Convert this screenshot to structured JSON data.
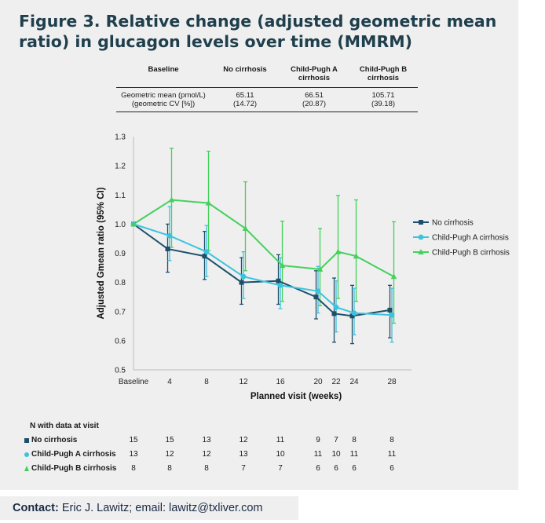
{
  "figure": {
    "title": "Figure 3. Relative change (adjusted geometric mean ratio) in glucagon levels over time (MMRM)"
  },
  "baseline_table": {
    "headers": [
      "Baseline",
      "No cirrhosis",
      "Child-Pugh A cirrhosis",
      "Child-Pugh B cirrhosis"
    ],
    "row_label": [
      "Geometric mean (pmol/L)",
      "(geometric CV [%])"
    ],
    "values": [
      [
        "65.11",
        "(14.72)"
      ],
      [
        "66.51",
        "(20.87)"
      ],
      [
        "105.71",
        "(39.18)"
      ]
    ]
  },
  "chart_data": {
    "type": "line",
    "x": [
      0,
      4,
      8,
      12,
      16,
      20,
      22,
      24,
      28
    ],
    "x_tick_labels": [
      "Baseline",
      "4",
      "8",
      "12",
      "16",
      "20",
      "22",
      "24",
      "28"
    ],
    "xlabel": "Planned visit (weeks)",
    "ylabel": "Adjusted Gmean ratio (95% CI)",
    "ylim": [
      0.5,
      1.3
    ],
    "y_ticks": [
      "0.5",
      "0.6",
      "0.7",
      "0.8",
      "0.9",
      "1.0",
      "1.1",
      "1.2",
      "1.3"
    ],
    "grid": false,
    "legend_position": "right",
    "series": [
      {
        "name": "No cirrhosis",
        "color": "#1d4f6b",
        "marker": "square",
        "values": [
          1.0,
          0.915,
          0.89,
          0.8,
          0.805,
          0.75,
          0.693,
          0.685,
          0.705
        ],
        "ci_low": [
          1.0,
          0.835,
          0.81,
          0.725,
          0.725,
          0.675,
          0.595,
          0.59,
          0.61
        ],
        "ci_high": [
          1.0,
          1.0,
          0.975,
          0.885,
          0.895,
          0.84,
          0.815,
          0.79,
          0.79
        ]
      },
      {
        "name": "Child-Pugh A cirrhosis",
        "color": "#3cc3dd",
        "marker": "circle",
        "values": [
          1.0,
          0.96,
          0.905,
          0.82,
          0.79,
          0.77,
          0.715,
          0.695,
          0.688
        ],
        "ci_low": [
          1.0,
          0.875,
          0.82,
          0.745,
          0.71,
          0.695,
          0.63,
          0.62,
          0.595
        ],
        "ci_high": [
          1.0,
          1.06,
          0.995,
          0.905,
          0.885,
          0.855,
          0.805,
          0.78,
          0.78
        ]
      },
      {
        "name": "Child-Pugh B cirrhosis",
        "color": "#43d15c",
        "marker": "triangle",
        "values": [
          1.0,
          1.083,
          1.072,
          0.985,
          0.858,
          0.845,
          0.905,
          0.89,
          0.82
        ],
        "ci_low": [
          1.0,
          0.92,
          0.91,
          0.84,
          0.735,
          0.72,
          0.745,
          0.735,
          0.66
        ],
        "ci_high": [
          1.0,
          1.26,
          1.25,
          1.145,
          1.01,
          0.985,
          1.098,
          1.083,
          1.008
        ]
      }
    ]
  },
  "n_table": {
    "heading": "N with data at visit",
    "rows": [
      {
        "label": "No cirrhosis",
        "values": [
          "15",
          "15",
          "13",
          "12",
          "11",
          "9",
          "7",
          "8",
          "8"
        ]
      },
      {
        "label": "Child-Pugh A cirrhosis",
        "values": [
          "13",
          "12",
          "12",
          "13",
          "10",
          "11",
          "10",
          "11",
          "11"
        ]
      },
      {
        "label": "Child-Pugh B cirrhosis",
        "values": [
          "8",
          "8",
          "8",
          "7",
          "7",
          "6",
          "6",
          "6",
          "6"
        ]
      }
    ]
  },
  "contact": {
    "label": "Contact:",
    "text": "Eric J. Lawitz; email: lawitz@txliver.com"
  }
}
